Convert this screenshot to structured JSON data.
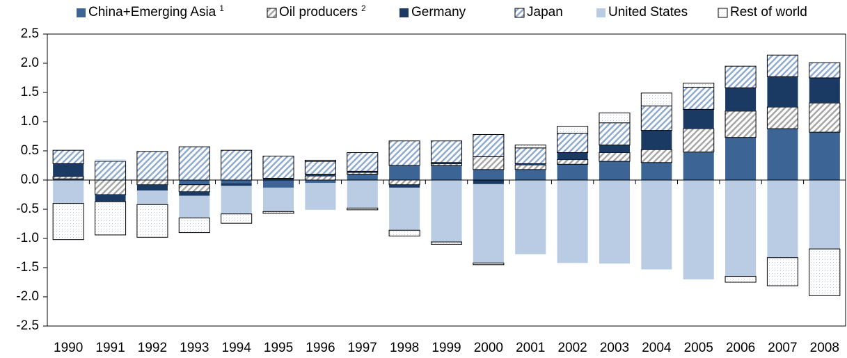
{
  "chart_data": {
    "type": "stacked-bar",
    "categories": [
      "1990",
      "1991",
      "1992",
      "1993",
      "1994",
      "1995",
      "1996",
      "1997",
      "1998",
      "1999",
      "2000",
      "2001",
      "2002",
      "2003",
      "2004",
      "2005",
      "2006",
      "2007",
      "2008"
    ],
    "series": [
      {
        "name": "China+Emerging Asia",
        "footnote": "1",
        "color": "#3c6596",
        "pattern": "solid",
        "values": [
          0.02,
          0,
          0,
          -0.08,
          -0.05,
          -0.13,
          -0.05,
          0.1,
          0.25,
          0.25,
          0.18,
          0.18,
          0.27,
          0.32,
          0.3,
          0.48,
          0.73,
          0.88,
          0.82
        ]
      },
      {
        "name": "Oil producers",
        "footnote": "2",
        "color": "#a6a6a6",
        "pattern": "hatch",
        "values": [
          0.04,
          -0.25,
          -0.08,
          -0.12,
          0,
          0,
          0.07,
          0.03,
          -0.08,
          0.03,
          0.22,
          0.08,
          0.08,
          0.15,
          0.22,
          0.4,
          0.45,
          0.37,
          0.5
        ]
      },
      {
        "name": "Germany",
        "color": "#1b3a63",
        "pattern": "solid",
        "values": [
          0.22,
          -0.12,
          -0.1,
          -0.07,
          -0.05,
          0.03,
          0.03,
          0.02,
          -0.05,
          0.02,
          -0.07,
          0.02,
          0.12,
          0.13,
          0.33,
          0.33,
          0.4,
          0.52,
          0.43
        ]
      },
      {
        "name": "Japan",
        "color": "#8faad0",
        "pattern": "hatch",
        "values": [
          0.23,
          0.32,
          0.49,
          0.57,
          0.51,
          0.38,
          0.22,
          0.32,
          0.42,
          0.37,
          0.38,
          0.27,
          0.33,
          0.38,
          0.42,
          0.38,
          0.37,
          0.37,
          0.26
        ]
      },
      {
        "name": "United States",
        "color": "#b9cce4",
        "pattern": "solid",
        "values": [
          -0.4,
          0.03,
          -0.24,
          -0.38,
          -0.48,
          -0.41,
          -0.46,
          -0.48,
          -0.73,
          -1.06,
          -1.35,
          -1.27,
          -1.42,
          -1.43,
          -1.53,
          -1.7,
          -1.65,
          -1.33,
          -1.18
        ]
      },
      {
        "name": "Rest of world",
        "color": "#ffffff",
        "pattern": "dots",
        "values": [
          -0.62,
          -0.57,
          -0.56,
          -0.25,
          -0.16,
          -0.03,
          0.02,
          -0.03,
          -0.1,
          -0.04,
          -0.03,
          0.05,
          0.12,
          0.17,
          0.22,
          0.07,
          -0.1,
          -0.48,
          -0.8
        ]
      }
    ],
    "ylim": [
      -2.5,
      2.5
    ],
    "yticks": [
      2.5,
      {
        "value": 2.0,
        "label": "2.0"
      },
      1.5,
      {
        "value": 1.0,
        "label": "1.0"
      },
      0.5,
      {
        "value": 0.0,
        "label": "0.0"
      },
      -0.5,
      {
        "value": -1.0,
        "label": "-1.0"
      },
      -1.5,
      {
        "value": -2.0,
        "label": "-2.0"
      },
      -2.5
    ],
    "legend": "top"
  }
}
